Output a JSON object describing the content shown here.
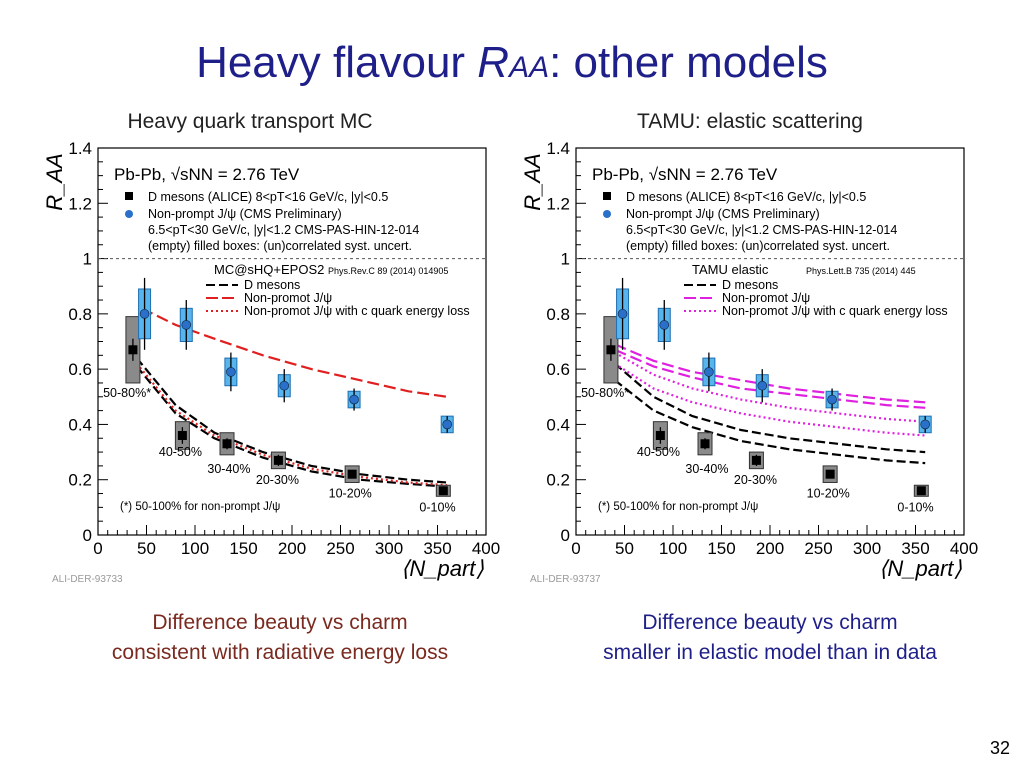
{
  "slide": {
    "title_main": "Heavy flavour ",
    "title_r": "R",
    "title_sub": "AA",
    "title_rest": ": other models",
    "page_number": "32"
  },
  "subtitles": {
    "left": "Heavy quark transport MC",
    "right": "TAMU: elastic scattering"
  },
  "notes": {
    "left_line1": "Difference beauty vs charm",
    "left_line2": "consistent with radiative energy loss",
    "right_line1": "Difference beauty vs charm",
    "right_line2": "smaller in elastic model than in data"
  },
  "chart_data": [
    {
      "type": "scatter",
      "ylabel": "R_AA",
      "xlabel": "⟨N_part⟩",
      "xlim": [
        0,
        400
      ],
      "ylim": [
        0,
        1.4
      ],
      "x_ticks": [
        "0",
        "50",
        "100",
        "150",
        "200",
        "250",
        "300",
        "350",
        "400"
      ],
      "y_ticks": [
        "0",
        "0.2",
        "0.4",
        "0.6",
        "0.8",
        "1",
        "1.2",
        "1.4"
      ],
      "reference_line": 1,
      "header": "Pb-Pb, √sNN = 2.76 TeV",
      "legend_data": [
        "D mesons (ALICE) 8<pT<16 GeV/c, |y|<0.5",
        "Non-prompt J/ψ (CMS Preliminary)",
        "6.5<pT<30 GeV/c, |y|<1.2 CMS-PAS-HIN-12-014",
        "(empty) filled boxes: (un)correlated syst. uncert."
      ],
      "model_name": "MC@sHQ+EPOS2",
      "model_ref": "Phys.Rev.C 89 (2014) 014905",
      "legend_models": [
        "D mesons",
        "Non-promot J/ψ",
        "Non-promot J/ψ with c quark energy loss"
      ],
      "footnote": "(*) 50-100% for non-prompt J/ψ",
      "watermark": "ALI-DER-93733",
      "centrality_labels": [
        {
          "text": "50-80%*",
          "x": 30,
          "y": 0.5
        },
        {
          "text": "40-50%",
          "x": 85,
          "y": 0.285
        },
        {
          "text": "30-40%",
          "x": 135,
          "y": 0.225
        },
        {
          "text": "20-30%",
          "x": 185,
          "y": 0.185
        },
        {
          "text": "10-20%",
          "x": 260,
          "y": 0.135
        },
        {
          "text": "0-10%",
          "x": 350,
          "y": 0.085
        }
      ],
      "series": [
        {
          "name": "D mesons (ALICE)",
          "marker": "square",
          "color": "#000000",
          "points": [
            {
              "x": 36,
              "y": 0.67,
              "stat": 0.04,
              "syst": 0.12
            },
            {
              "x": 87,
              "y": 0.36,
              "stat": 0.03,
              "syst": 0.05
            },
            {
              "x": 133,
              "y": 0.33,
              "stat": 0.02,
              "syst": 0.04
            },
            {
              "x": 186,
              "y": 0.27,
              "stat": 0.02,
              "syst": 0.03
            },
            {
              "x": 262,
              "y": 0.22,
              "stat": 0.01,
              "syst": 0.03
            },
            {
              "x": 356,
              "y": 0.16,
              "stat": 0.01,
              "syst": 0.02
            }
          ]
        },
        {
          "name": "Non-prompt J/ψ (CMS Preliminary)",
          "marker": "circle",
          "color": "#2a6fc9",
          "points": [
            {
              "x": 48,
              "y": 0.8,
              "stat": 0.13,
              "syst": 0.09
            },
            {
              "x": 91,
              "y": 0.76,
              "stat": 0.09,
              "syst": 0.06
            },
            {
              "x": 137,
              "y": 0.59,
              "stat": 0.07,
              "syst": 0.05
            },
            {
              "x": 192,
              "y": 0.54,
              "stat": 0.06,
              "syst": 0.04
            },
            {
              "x": 264,
              "y": 0.49,
              "stat": 0.04,
              "syst": 0.03
            },
            {
              "x": 360,
              "y": 0.4,
              "stat": 0.03,
              "syst": 0.03
            }
          ]
        }
      ],
      "curves": [
        {
          "name": "D mesons",
          "style": "dash",
          "color": "#000000",
          "points": [
            [
              40,
              0.64
            ],
            [
              80,
              0.47
            ],
            [
              120,
              0.37
            ],
            [
              170,
              0.3
            ],
            [
              220,
              0.25
            ],
            [
              270,
              0.22
            ],
            [
              320,
              0.2
            ],
            [
              360,
              0.19
            ]
          ]
        },
        {
          "name": "D mesons",
          "style": "dash",
          "color": "#000000",
          "points": [
            [
              40,
              0.61
            ],
            [
              80,
              0.44
            ],
            [
              120,
              0.35
            ],
            [
              170,
              0.28
            ],
            [
              220,
              0.23
            ],
            [
              270,
              0.2
            ],
            [
              320,
              0.185
            ],
            [
              360,
              0.175
            ]
          ]
        },
        {
          "name": "Non-promot J/ψ",
          "style": "longdash",
          "color": "#e02020",
          "points": [
            [
              45,
              0.82
            ],
            [
              80,
              0.76
            ],
            [
              120,
              0.71
            ],
            [
              170,
              0.65
            ],
            [
              220,
              0.6
            ],
            [
              270,
              0.56
            ],
            [
              320,
              0.52
            ],
            [
              360,
              0.5
            ]
          ]
        },
        {
          "name": "Non-promot J/ψ with c quark energy loss",
          "style": "dot",
          "color": "#e02020",
          "points": [
            [
              40,
              0.62
            ],
            [
              80,
              0.45
            ],
            [
              120,
              0.36
            ],
            [
              170,
              0.29
            ],
            [
              220,
              0.24
            ],
            [
              270,
              0.21
            ],
            [
              320,
              0.19
            ],
            [
              360,
              0.18
            ]
          ]
        }
      ]
    },
    {
      "type": "scatter",
      "ylabel": "R_AA",
      "xlabel": "⟨N_part⟩",
      "xlim": [
        0,
        400
      ],
      "ylim": [
        0,
        1.4
      ],
      "x_ticks": [
        "0",
        "50",
        "100",
        "150",
        "200",
        "250",
        "300",
        "350",
        "400"
      ],
      "y_ticks": [
        "0",
        "0.2",
        "0.4",
        "0.6",
        "0.8",
        "1",
        "1.2",
        "1.4"
      ],
      "reference_line": 1,
      "header": "Pb-Pb, √sNN = 2.76 TeV",
      "legend_data": [
        "D mesons (ALICE) 8<pT<16 GeV/c, |y|<0.5",
        "Non-prompt J/ψ (CMS Preliminary)",
        "6.5<pT<30 GeV/c, |y|<1.2 CMS-PAS-HIN-12-014",
        "(empty) filled boxes: (un)correlated syst. uncert."
      ],
      "model_name": "TAMU elastic",
      "model_ref": "Phys.Lett.B 735 (2014) 445",
      "legend_models": [
        "D mesons",
        "Non-promot J/ψ",
        "Non-promot J/ψ with c quark energy loss"
      ],
      "footnote": "(*) 50-100% for non-prompt J/ψ",
      "watermark": "ALI-DER-93737",
      "centrality_labels": [
        {
          "text": "50-80%*",
          "x": 30,
          "y": 0.5
        },
        {
          "text": "40-50%",
          "x": 85,
          "y": 0.285
        },
        {
          "text": "30-40%",
          "x": 135,
          "y": 0.225
        },
        {
          "text": "20-30%",
          "x": 185,
          "y": 0.185
        },
        {
          "text": "10-20%",
          "x": 260,
          "y": 0.135
        },
        {
          "text": "0-10%",
          "x": 350,
          "y": 0.085
        }
      ],
      "series": [
        {
          "name": "D mesons (ALICE)",
          "marker": "square",
          "color": "#000000",
          "points": [
            {
              "x": 36,
              "y": 0.67,
              "stat": 0.04,
              "syst": 0.12
            },
            {
              "x": 87,
              "y": 0.36,
              "stat": 0.03,
              "syst": 0.05
            },
            {
              "x": 133,
              "y": 0.33,
              "stat": 0.02,
              "syst": 0.04
            },
            {
              "x": 186,
              "y": 0.27,
              "stat": 0.02,
              "syst": 0.03
            },
            {
              "x": 262,
              "y": 0.22,
              "stat": 0.01,
              "syst": 0.03
            },
            {
              "x": 356,
              "y": 0.16,
              "stat": 0.01,
              "syst": 0.02
            }
          ]
        },
        {
          "name": "Non-prompt J/ψ (CMS Preliminary)",
          "marker": "circle",
          "color": "#2a6fc9",
          "points": [
            {
              "x": 48,
              "y": 0.8,
              "stat": 0.13,
              "syst": 0.09
            },
            {
              "x": 91,
              "y": 0.76,
              "stat": 0.09,
              "syst": 0.06
            },
            {
              "x": 137,
              "y": 0.59,
              "stat": 0.07,
              "syst": 0.05
            },
            {
              "x": 192,
              "y": 0.54,
              "stat": 0.06,
              "syst": 0.04
            },
            {
              "x": 264,
              "y": 0.49,
              "stat": 0.04,
              "syst": 0.03
            },
            {
              "x": 360,
              "y": 0.4,
              "stat": 0.03,
              "syst": 0.03
            }
          ]
        }
      ],
      "curves": [
        {
          "name": "D mesons",
          "style": "dash",
          "color": "#000000",
          "points": [
            [
              40,
              0.62
            ],
            [
              80,
              0.5
            ],
            [
              120,
              0.43
            ],
            [
              170,
              0.38
            ],
            [
              220,
              0.35
            ],
            [
              270,
              0.33
            ],
            [
              320,
              0.31
            ],
            [
              360,
              0.3
            ]
          ]
        },
        {
          "name": "D mesons",
          "style": "dash",
          "color": "#000000",
          "points": [
            [
              40,
              0.56
            ],
            [
              80,
              0.45
            ],
            [
              120,
              0.39
            ],
            [
              170,
              0.34
            ],
            [
              220,
              0.31
            ],
            [
              270,
              0.29
            ],
            [
              320,
              0.27
            ],
            [
              360,
              0.26
            ]
          ]
        },
        {
          "name": "Non-promot J/ψ",
          "style": "longdash",
          "color": "#e020e0",
          "points": [
            [
              40,
              0.69
            ],
            [
              80,
              0.63
            ],
            [
              120,
              0.59
            ],
            [
              170,
              0.56
            ],
            [
              220,
              0.53
            ],
            [
              270,
              0.51
            ],
            [
              320,
              0.49
            ],
            [
              360,
              0.48
            ]
          ]
        },
        {
          "name": "Non-promot J/ψ",
          "style": "longdash",
          "color": "#e020e0",
          "points": [
            [
              40,
              0.67
            ],
            [
              80,
              0.61
            ],
            [
              120,
              0.57
            ],
            [
              170,
              0.53
            ],
            [
              220,
              0.51
            ],
            [
              270,
              0.49
            ],
            [
              320,
              0.47
            ],
            [
              360,
              0.46
            ]
          ]
        },
        {
          "name": "Non-promot J/ψ with c quark energy loss",
          "style": "dot",
          "color": "#e020e0",
          "points": [
            [
              40,
              0.66
            ],
            [
              80,
              0.58
            ],
            [
              120,
              0.53
            ],
            [
              170,
              0.49
            ],
            [
              220,
              0.46
            ],
            [
              270,
              0.44
            ],
            [
              320,
              0.42
            ],
            [
              360,
              0.41
            ]
          ]
        },
        {
          "name": "Non-promot J/ψ with c quark energy loss",
          "style": "dot",
          "color": "#e020e0",
          "points": [
            [
              40,
              0.62
            ],
            [
              80,
              0.53
            ],
            [
              120,
              0.48
            ],
            [
              170,
              0.44
            ],
            [
              220,
              0.41
            ],
            [
              270,
              0.39
            ],
            [
              320,
              0.37
            ],
            [
              360,
              0.36
            ]
          ]
        }
      ]
    }
  ]
}
